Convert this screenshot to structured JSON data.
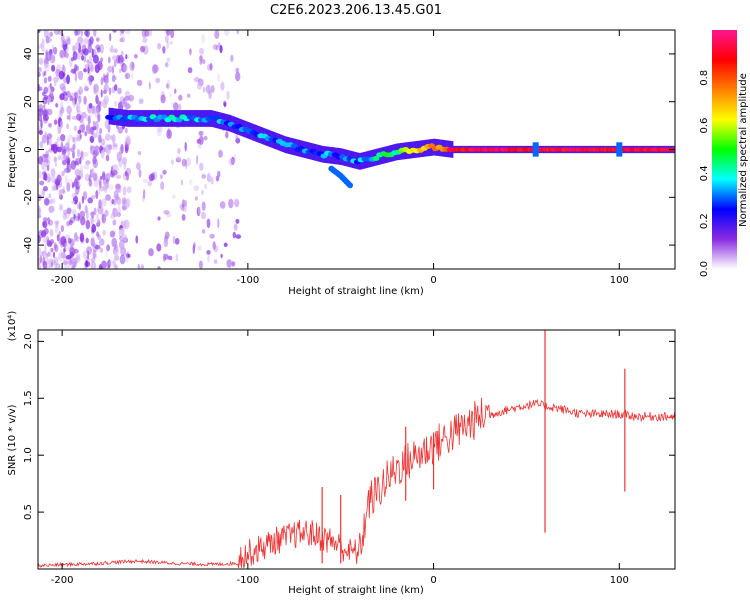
{
  "figure_title": "C2E6.2023.206.13.45.G01",
  "chart_data": [
    {
      "type": "heatmap",
      "title": "",
      "xlabel": "Height of straight line (km)",
      "ylabel": "Frequency (Hz)",
      "xlim": [
        -213,
        130
      ],
      "ylim": [
        -50,
        50
      ],
      "xticks": [
        -200,
        -100,
        0,
        100
      ],
      "yticks": [
        -40,
        -20,
        0,
        20,
        40
      ],
      "colorbar": {
        "label": "Normalized spectral amplitude",
        "range": [
          0,
          1
        ],
        "ticks": [
          "0.0",
          "0.2",
          "0.4",
          "0.6",
          "0.8"
        ],
        "colors": [
          "#ffffff",
          "#8a2be2",
          "#0000ff",
          "#00ffff",
          "#00ff00",
          "#ffff00",
          "#ff7f00",
          "#ff0000",
          "#ff1493"
        ]
      },
      "noise_region_x": [
        -213,
        -105
      ],
      "trace": {
        "x": [
          -175,
          -165,
          -150,
          -135,
          -120,
          -110,
          -100,
          -90,
          -80,
          -70,
          -60,
          -50,
          -40,
          -30,
          -20,
          -10,
          0,
          10,
          130
        ],
        "y": [
          14,
          13,
          13,
          13,
          13,
          11,
          8,
          5,
          2,
          0,
          -2,
          -3,
          -5,
          -3,
          -1,
          0,
          1,
          0,
          0
        ],
        "amplitude": [
          0.3,
          0.35,
          0.35,
          0.35,
          0.35,
          0.3,
          0.3,
          0.3,
          0.3,
          0.3,
          0.3,
          0.3,
          0.3,
          0.4,
          0.5,
          0.6,
          0.7,
          0.9,
          0.9
        ]
      },
      "secondary_trace": {
        "x": [
          -55,
          -50,
          -45
        ],
        "y": [
          -8,
          -11,
          -15
        ]
      },
      "bright_spots_x": [
        55,
        100
      ]
    },
    {
      "type": "line",
      "title": "",
      "xlabel": "Height of straight line (km)",
      "ylabel": "SNR (10 * v/v)",
      "y_multiplier": "(x10⁴)",
      "xlim": [
        -213,
        130
      ],
      "ylim": [
        0,
        2.1
      ],
      "xticks": [
        -200,
        -100,
        0,
        100
      ],
      "yticks": [
        "0.5",
        "1.0",
        "1.5",
        "2.0"
      ],
      "ytick_values": [
        0.5,
        1.0,
        1.5,
        2.0
      ],
      "color": "#ee3333",
      "series": [
        {
          "x": [
            -213,
            -180,
            -160,
            -150,
            -140,
            -120,
            -105,
            -95,
            -90,
            -85,
            -80,
            -75,
            -70,
            -65,
            -60,
            -55,
            -50,
            -45,
            -40,
            -35,
            -30,
            -25,
            -20,
            -15,
            -10,
            -5,
            0,
            5,
            10,
            15,
            20,
            25,
            30,
            35,
            40,
            45,
            50,
            55,
            60,
            65,
            70,
            80,
            90,
            100,
            105,
            110,
            120,
            130
          ],
          "y": [
            0.03,
            0.05,
            0.07,
            0.06,
            0.05,
            0.04,
            0.05,
            0.12,
            0.16,
            0.2,
            0.22,
            0.25,
            0.27,
            0.26,
            0.22,
            0.2,
            0.15,
            0.1,
            0.1,
            0.55,
            0.65,
            0.75,
            0.85,
            0.9,
            0.95,
            1.0,
            1.05,
            1.1,
            1.15,
            1.2,
            1.25,
            1.3,
            1.35,
            1.38,
            1.4,
            1.42,
            1.44,
            1.45,
            1.43,
            1.42,
            1.4,
            1.36,
            1.36,
            1.36,
            1.35,
            1.34,
            1.34,
            1.34
          ]
        }
      ],
      "spikes": [
        {
          "x": 60,
          "min": 0.32,
          "max": 2.1
        },
        {
          "x": 103,
          "min": 0.68,
          "max": 1.76
        },
        {
          "x": -60,
          "min": 0.05,
          "max": 0.72
        },
        {
          "x": -50,
          "min": 0.05,
          "max": 0.65
        },
        {
          "x": -15,
          "min": 0.6,
          "max": 1.25
        },
        {
          "x": 0,
          "min": 0.7,
          "max": 1.2
        }
      ]
    }
  ]
}
